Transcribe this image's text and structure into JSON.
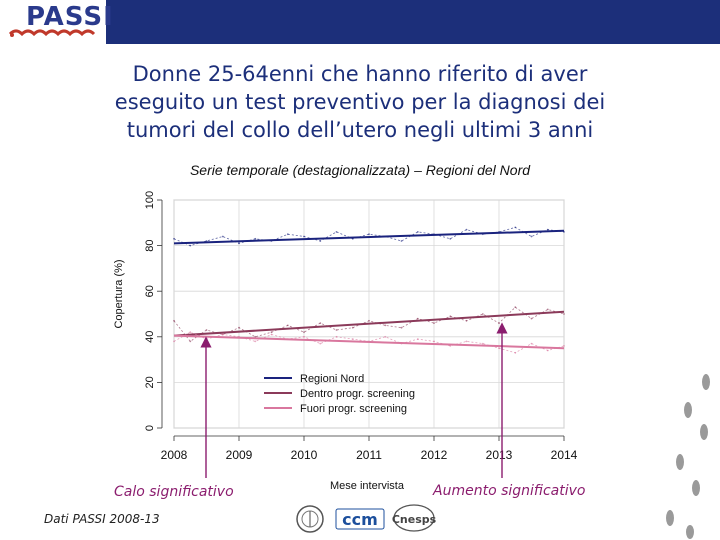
{
  "header": {
    "logo_text": "PASSI"
  },
  "title": {
    "line1": "Donne 25-64enni che hanno riferito di aver",
    "line2": "eseguito un test preventivo per la diagnosi dei",
    "line3": "tumori del collo dell’utero negli ultimi 3 anni"
  },
  "subtitle": "Serie temporale (destagionalizzata) – Regioni del Nord",
  "annotations": {
    "left": "Calo significativo",
    "right": "Aumento significativo"
  },
  "footer": {
    "source": "Dati PASSI 2008-13",
    "logos": [
      "ccm",
      "Cnesps"
    ]
  },
  "colors": {
    "header_band": "#1c2f7a",
    "title": "#1c2f7a",
    "annotation": "#8b1d6e",
    "series_regioni": "#1a237e",
    "series_dentro": "#8b3a5a",
    "series_fuori": "#d9779e"
  },
  "chart_data": {
    "type": "line",
    "title": "",
    "xlabel": "Mese intervista",
    "ylabel": "Copertura (%)",
    "xlim": [
      2008,
      2014
    ],
    "ylim": [
      0,
      100
    ],
    "x_ticks": [
      "2008",
      "2009",
      "2010",
      "2011",
      "2012",
      "2013",
      "2014"
    ],
    "y_ticks": [
      "0",
      "20",
      "40",
      "60",
      "80",
      "100"
    ],
    "legend_position": "bottom-left",
    "grid": true,
    "series": [
      {
        "name": "Regioni Nord",
        "color": "#1a237e",
        "trend": {
          "x": [
            2008,
            2014
          ],
          "y": [
            81,
            86.5
          ]
        },
        "observed": {
          "x": [
            2008.0,
            2008.25,
            2008.5,
            2008.75,
            2009.0,
            2009.25,
            2009.5,
            2009.75,
            2010.0,
            2010.25,
            2010.5,
            2010.75,
            2011.0,
            2011.25,
            2011.5,
            2011.75,
            2012.0,
            2012.25,
            2012.5,
            2012.75,
            2013.0,
            2013.25,
            2013.5,
            2013.75,
            2014.0
          ],
          "y": [
            83,
            80,
            82,
            84,
            81,
            83,
            82,
            85,
            84,
            82,
            86,
            83,
            85,
            84,
            82,
            86,
            85,
            83,
            87,
            85,
            86,
            88,
            84,
            87,
            86
          ]
        }
      },
      {
        "name": "Dentro progr. screening",
        "color": "#8b3a5a",
        "trend": {
          "x": [
            2008,
            2014
          ],
          "y": [
            40.5,
            51
          ]
        },
        "observed": {
          "x": [
            2008.0,
            2008.25,
            2008.5,
            2008.75,
            2009.0,
            2009.25,
            2009.5,
            2009.75,
            2010.0,
            2010.25,
            2010.5,
            2010.75,
            2011.0,
            2011.25,
            2011.5,
            2011.75,
            2012.0,
            2012.25,
            2012.5,
            2012.75,
            2013.0,
            2013.25,
            2013.5,
            2013.75,
            2014.0
          ],
          "y": [
            47,
            38,
            43,
            41,
            44,
            40,
            42,
            45,
            42,
            46,
            43,
            44,
            47,
            45,
            44,
            48,
            46,
            49,
            47,
            50,
            46,
            53,
            48,
            52,
            50
          ]
        }
      },
      {
        "name": "Fuori progr. screening",
        "color": "#d9779e",
        "trend": {
          "x": [
            2008,
            2014
          ],
          "y": [
            40.5,
            35
          ]
        },
        "observed": {
          "x": [
            2008.0,
            2008.25,
            2008.5,
            2008.75,
            2009.0,
            2009.25,
            2009.5,
            2009.75,
            2010.0,
            2010.25,
            2010.5,
            2010.75,
            2011.0,
            2011.25,
            2011.5,
            2011.75,
            2012.0,
            2012.25,
            2012.5,
            2012.75,
            2013.0,
            2013.25,
            2013.5,
            2013.75,
            2014.0
          ],
          "y": [
            38,
            42,
            39,
            41,
            40,
            38,
            41,
            39,
            40,
            37,
            40,
            39,
            38,
            40,
            37,
            39,
            38,
            36,
            38,
            37,
            35,
            33,
            37,
            34,
            36
          ]
        }
      }
    ]
  }
}
